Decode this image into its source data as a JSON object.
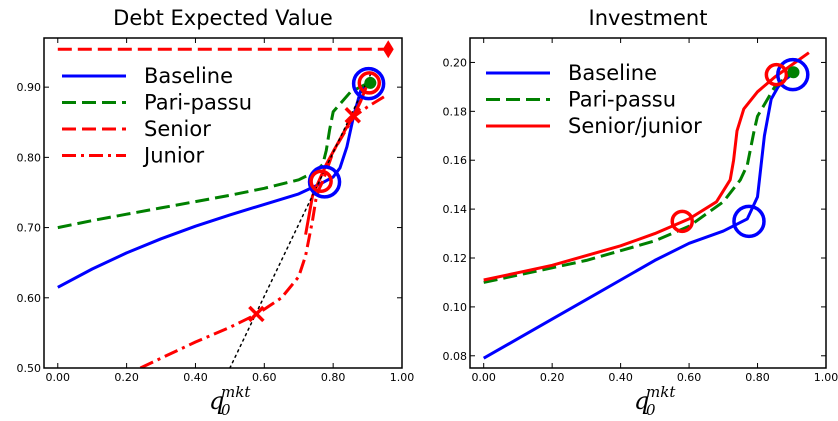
{
  "chart_data": [
    {
      "type": "line",
      "title": "Debt Expected Value",
      "xlabel": {
        "base": "q",
        "sub": "0",
        "sup": "mkt"
      },
      "ylabel": "",
      "xlim": [
        -0.04,
        1.0
      ],
      "ylim": [
        0.5,
        0.97
      ],
      "xticks": [
        0.0,
        0.2,
        0.4,
        0.6,
        0.8,
        1.0
      ],
      "xtick_labels": [
        "0.00",
        "0.20",
        "0.40",
        "0.60",
        "0.80",
        "1.00"
      ],
      "yticks": [
        0.5,
        0.6,
        0.7,
        0.8,
        0.9
      ],
      "ytick_labels": [
        "0.50",
        "0.60",
        "0.70",
        "0.80",
        "0.90"
      ],
      "grid": false,
      "legend_position": "top-left",
      "series": [
        {
          "name": "Baseline",
          "color": "#0000ff",
          "dash": "solid",
          "x": [
            0.0,
            0.1,
            0.2,
            0.3,
            0.4,
            0.5,
            0.6,
            0.7,
            0.77,
            0.8,
            0.82,
            0.84,
            0.86,
            0.88,
            0.9
          ],
          "y": [
            0.615,
            0.641,
            0.664,
            0.684,
            0.702,
            0.718,
            0.733,
            0.748,
            0.764,
            0.772,
            0.785,
            0.815,
            0.86,
            0.895,
            0.908
          ]
        },
        {
          "name": "Pari-passu",
          "color": "#008000",
          "dash": "dashed",
          "x": [
            0.0,
            0.1,
            0.2,
            0.3,
            0.4,
            0.5,
            0.6,
            0.7,
            0.75,
            0.77,
            0.78,
            0.79,
            0.8,
            0.85,
            0.91
          ],
          "y": [
            0.7,
            0.71,
            0.719,
            0.728,
            0.737,
            0.746,
            0.756,
            0.768,
            0.78,
            0.79,
            0.81,
            0.84,
            0.865,
            0.893,
            0.908
          ]
        },
        {
          "name": "Senior",
          "color": "#ff0000",
          "dash": "dashed",
          "x": [
            0.0,
            0.96
          ],
          "y": [
            0.954,
            0.954
          ]
        },
        {
          "name": "Junior",
          "color": "#ff0000",
          "dash": "dashdot",
          "x": [
            0.24,
            0.3,
            0.4,
            0.5,
            0.58,
            0.65,
            0.7,
            0.72,
            0.74,
            0.75,
            0.76,
            0.77,
            0.8,
            0.86,
            0.9,
            0.95
          ],
          "y": [
            0.5,
            0.514,
            0.537,
            0.558,
            0.577,
            0.6,
            0.63,
            0.66,
            0.71,
            0.74,
            0.756,
            0.766,
            0.808,
            0.858,
            0.872,
            0.887
          ]
        },
        {
          "name": "",
          "color": "#ff0000",
          "dash": "solid",
          "x": [
            0.72,
            0.74,
            0.76,
            0.78,
            0.8,
            0.83,
            0.86,
            0.88,
            0.9
          ],
          "y": [
            0.69,
            0.745,
            0.768,
            0.79,
            0.808,
            0.835,
            0.86,
            0.88,
            0.905
          ]
        },
        {
          "name": "",
          "color": "#000000",
          "dash": "dotted",
          "x": [
            0.5,
            0.92
          ],
          "y": [
            0.5,
            0.93
          ]
        }
      ],
      "markers": [
        {
          "shape": "circle",
          "color": "#0000ff",
          "size": "large",
          "x": [
            0.775,
            0.903
          ],
          "y": [
            0.765,
            0.905
          ]
        },
        {
          "shape": "circle",
          "color": "#ff0000",
          "size": "medium",
          "x": [
            0.765,
            0.905
          ],
          "y": [
            0.766,
            0.906
          ]
        },
        {
          "shape": "circle",
          "color": "#008000",
          "size": "small",
          "filled": true,
          "x": [
            0.908
          ],
          "y": [
            0.906
          ]
        },
        {
          "shape": "x",
          "color": "#ff0000",
          "x": [
            0.577,
            0.857
          ],
          "y": [
            0.577,
            0.86
          ]
        },
        {
          "shape": "diamond",
          "color": "#ff0000",
          "x": [
            0.96
          ],
          "y": [
            0.954
          ]
        }
      ]
    },
    {
      "type": "line",
      "title": "Investment",
      "xlabel": {
        "base": "q",
        "sub": "0",
        "sup": "mkt"
      },
      "ylabel": "",
      "xlim": [
        -0.04,
        1.0
      ],
      "ylim": [
        0.075,
        0.21
      ],
      "xticks": [
        0.0,
        0.2,
        0.4,
        0.6,
        0.8,
        1.0
      ],
      "xtick_labels": [
        "0.00",
        "0.20",
        "0.40",
        "0.60",
        "0.80",
        "1.00"
      ],
      "yticks": [
        0.08,
        0.1,
        0.12,
        0.14,
        0.16,
        0.18,
        0.2
      ],
      "ytick_labels": [
        "0.08",
        "0.10",
        "0.12",
        "0.14",
        "0.16",
        "0.18",
        "0.20"
      ],
      "grid": false,
      "legend_position": "top-left",
      "series": [
        {
          "name": "Baseline",
          "color": "#0000ff",
          "dash": "solid",
          "x": [
            0.0,
            0.1,
            0.2,
            0.3,
            0.4,
            0.5,
            0.6,
            0.7,
            0.77,
            0.8,
            0.82,
            0.84,
            0.86,
            0.88,
            0.9,
            0.92
          ],
          "y": [
            0.079,
            0.087,
            0.095,
            0.103,
            0.111,
            0.119,
            0.126,
            0.131,
            0.136,
            0.145,
            0.17,
            0.185,
            0.19,
            0.193,
            0.195,
            0.197
          ]
        },
        {
          "name": "Pari-passu",
          "color": "#008000",
          "dash": "dashed",
          "x": [
            0.0,
            0.1,
            0.2,
            0.3,
            0.4,
            0.5,
            0.6,
            0.7,
            0.75,
            0.77,
            0.78,
            0.79,
            0.8,
            0.85,
            0.91
          ],
          "y": [
            0.11,
            0.113,
            0.116,
            0.119,
            0.123,
            0.127,
            0.133,
            0.143,
            0.152,
            0.158,
            0.165,
            0.172,
            0.178,
            0.19,
            0.197
          ]
        },
        {
          "name": "Senior/junior",
          "color": "#ff0000",
          "dash": "solid",
          "x": [
            0.0,
            0.1,
            0.2,
            0.3,
            0.4,
            0.5,
            0.6,
            0.68,
            0.72,
            0.73,
            0.74,
            0.76,
            0.8,
            0.85,
            0.9,
            0.95
          ],
          "y": [
            0.111,
            0.114,
            0.117,
            0.121,
            0.125,
            0.13,
            0.136,
            0.143,
            0.152,
            0.16,
            0.172,
            0.181,
            0.188,
            0.194,
            0.199,
            0.204
          ]
        }
      ],
      "markers": [
        {
          "shape": "circle",
          "color": "#0000ff",
          "size": "large",
          "x": [
            0.775,
            0.903
          ],
          "y": [
            0.135,
            0.195
          ]
        },
        {
          "shape": "circle",
          "color": "#ff0000",
          "size": "medium",
          "x": [
            0.58,
            0.855
          ],
          "y": [
            0.135,
            0.195
          ]
        },
        {
          "shape": "circle",
          "color": "#008000",
          "size": "small",
          "filled": true,
          "x": [
            0.905
          ],
          "y": [
            0.196
          ]
        }
      ]
    }
  ]
}
